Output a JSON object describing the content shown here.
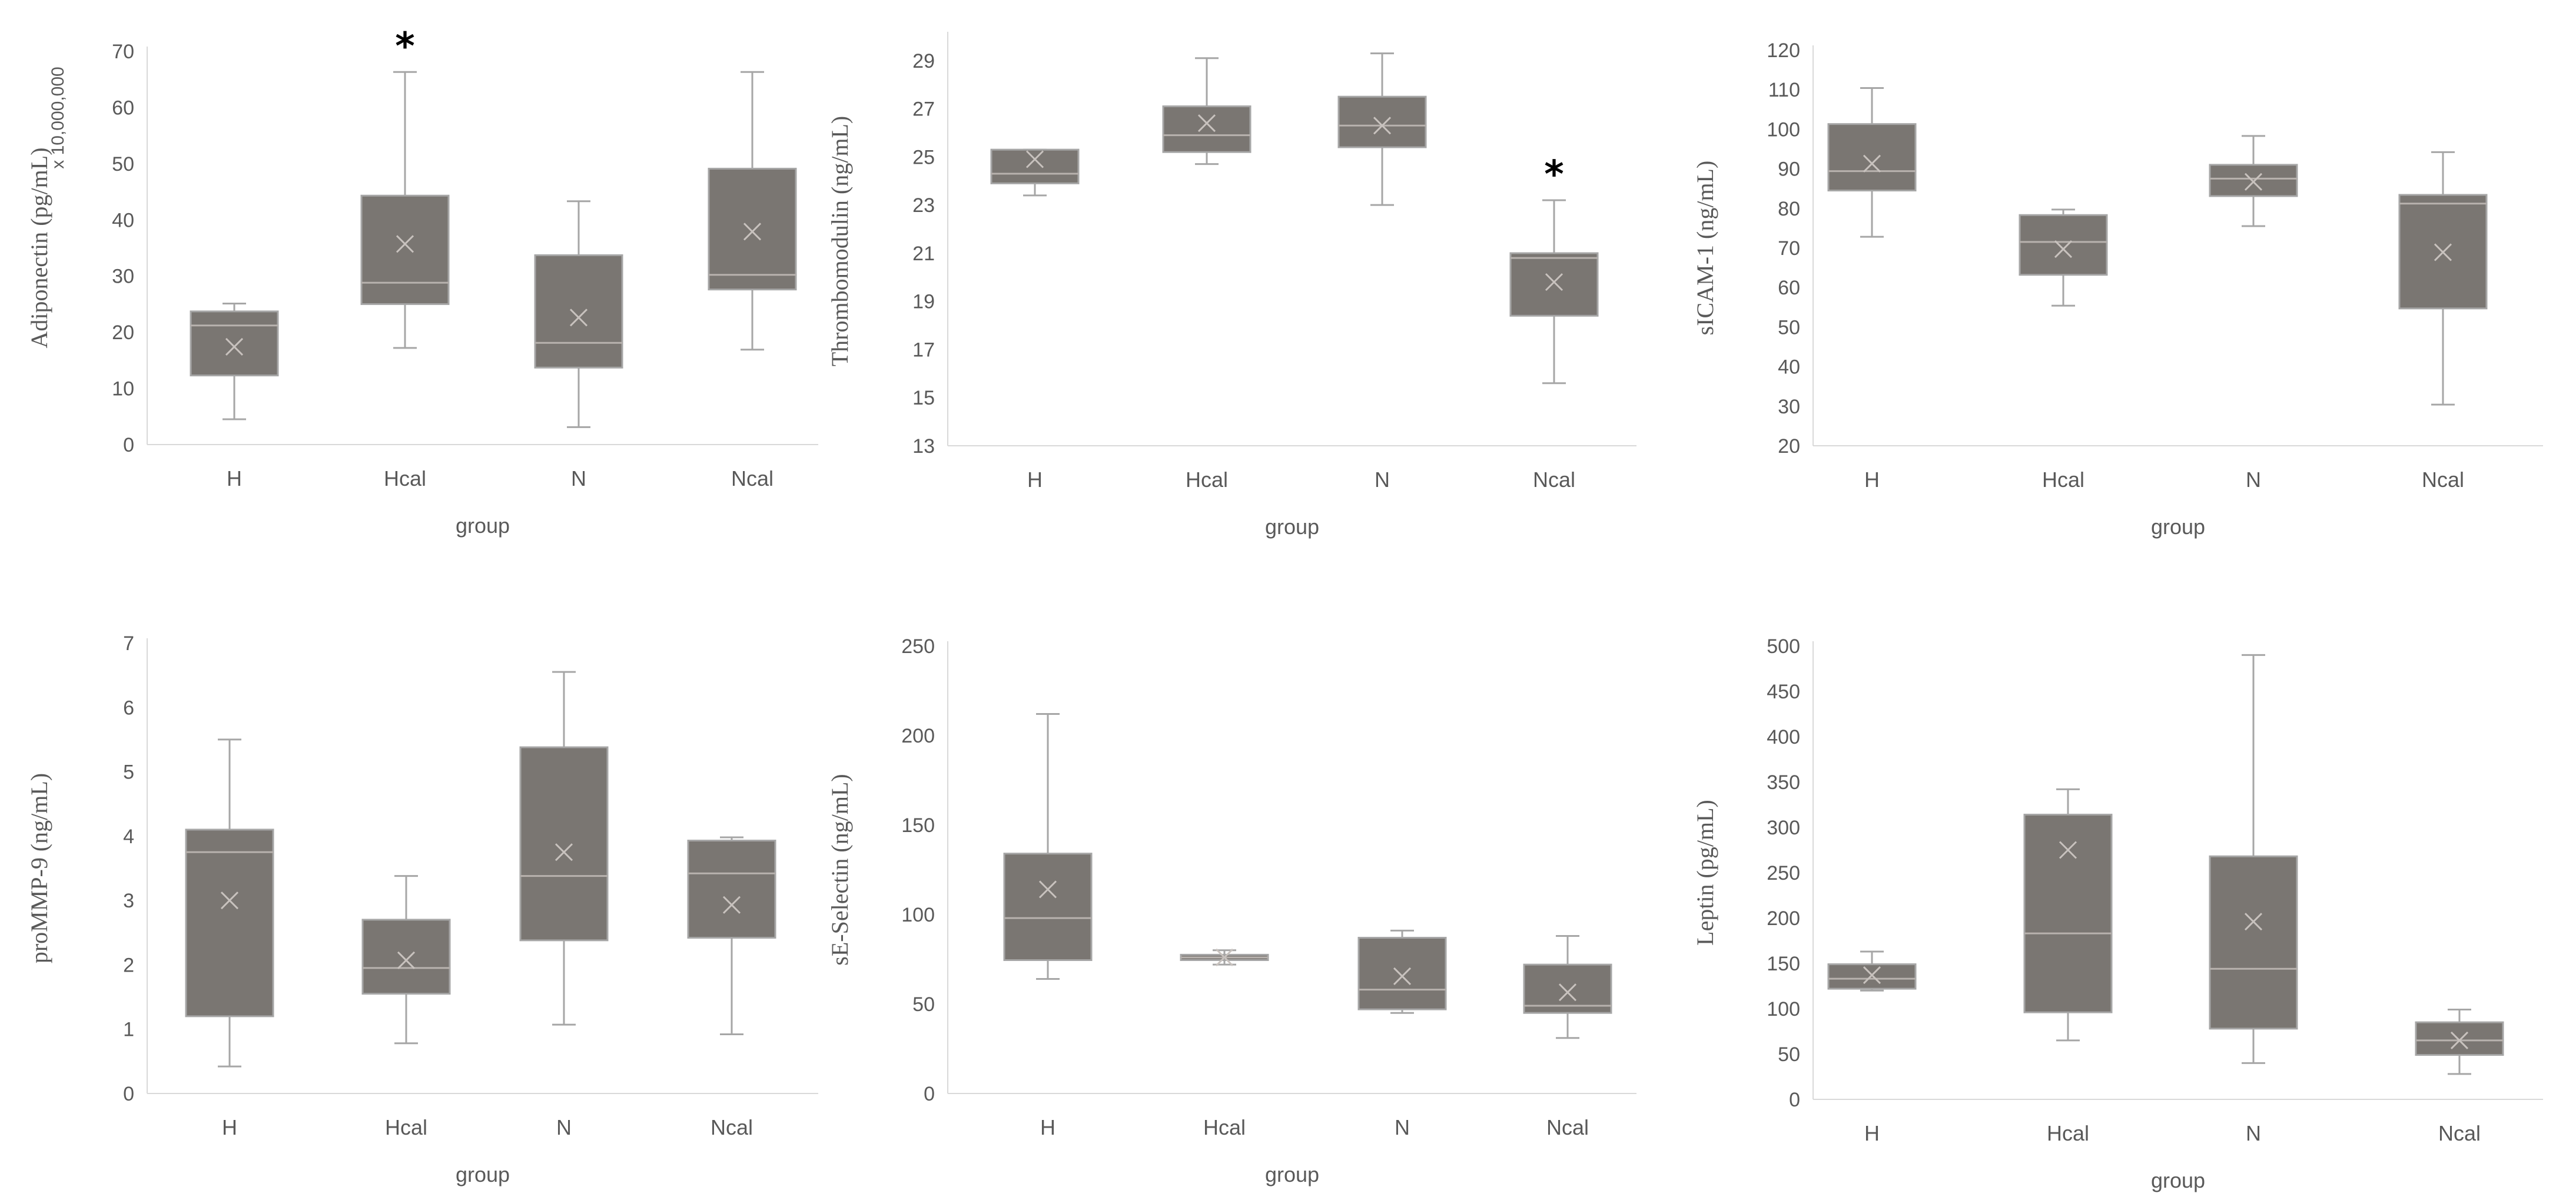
{
  "chart_data": [
    {
      "type": "box",
      "ylabel": "Adiponectin (pg/mL)",
      "multiplier_label": "x 10,000,000",
      "xlabel": "group",
      "categories": [
        "H",
        "Hcal",
        "N",
        "Ncal"
      ],
      "ylim": [
        0,
        70
      ],
      "yticks": [
        0,
        10,
        20,
        30,
        40,
        50,
        60,
        70
      ],
      "series": [
        {
          "name": "H",
          "min": 4.5,
          "q1": 12.3,
          "median": 21.2,
          "q3": 23.7,
          "max": 25.1,
          "mean": 17.4
        },
        {
          "name": "Hcal",
          "min": 17.2,
          "q1": 25.0,
          "median": 28.8,
          "q3": 44.3,
          "max": 66.3,
          "mean": 35.7
        },
        {
          "name": "N",
          "min": 3.1,
          "q1": 13.7,
          "median": 18.1,
          "q3": 33.7,
          "max": 43.3,
          "mean": 22.6
        },
        {
          "name": "Ncal",
          "min": 16.9,
          "q1": 27.6,
          "median": 30.2,
          "q3": 49.1,
          "max": 66.3,
          "mean": 37.9
        }
      ],
      "annotations": [
        {
          "category": "Hcal",
          "text": "*"
        }
      ]
    },
    {
      "type": "box",
      "ylabel": "Thrombomodulin (ng/mL)",
      "xlabel": "group",
      "categories": [
        "H",
        "Hcal",
        "N",
        "Ncal"
      ],
      "ylim": [
        13,
        30
      ],
      "yticks": [
        13,
        15,
        17,
        19,
        21,
        23,
        25,
        27,
        29
      ],
      "series": [
        {
          "name": "H",
          "min": 23.4,
          "q1": 23.9,
          "median": 24.3,
          "q3": 25.3,
          "max": 25.3,
          "mean": 24.9
        },
        {
          "name": "Hcal",
          "min": 24.7,
          "q1": 25.2,
          "median": 25.9,
          "q3": 27.1,
          "max": 29.1,
          "mean": 26.4
        },
        {
          "name": "N",
          "min": 23.0,
          "q1": 25.4,
          "median": 26.3,
          "q3": 27.5,
          "max": 29.3,
          "mean": 26.3
        },
        {
          "name": "Ncal",
          "min": 15.6,
          "q1": 18.4,
          "median": 20.8,
          "q3": 21.0,
          "max": 23.2,
          "mean": 19.8
        }
      ],
      "annotations": [
        {
          "category": "Ncal",
          "text": "*"
        }
      ]
    },
    {
      "type": "box",
      "ylabel": "sICAM-1 (ng/mL)",
      "xlabel": "group",
      "categories": [
        "H",
        "Hcal",
        "N",
        "Ncal"
      ],
      "ylim": [
        20,
        120
      ],
      "yticks": [
        20,
        30,
        40,
        50,
        60,
        70,
        80,
        90,
        100,
        110,
        120
      ],
      "series": [
        {
          "name": "H",
          "min": 72.8,
          "q1": 84.5,
          "median": 89.4,
          "q3": 101.3,
          "max": 110.4,
          "mean": 91.3
        },
        {
          "name": "Hcal",
          "min": 55.4,
          "q1": 63.2,
          "median": 71.5,
          "q3": 78.3,
          "max": 79.7,
          "mean": 69.7
        },
        {
          "name": "N",
          "min": 75.5,
          "q1": 83.1,
          "median": 87.5,
          "q3": 91.0,
          "max": 98.3,
          "mean": 86.7
        },
        {
          "name": "Ncal",
          "min": 30.4,
          "q1": 54.7,
          "median": 81.2,
          "q3": 83.4,
          "max": 94.2,
          "mean": 68.9
        }
      ],
      "annotations": []
    },
    {
      "type": "box",
      "ylabel": "proMMP-9 (ng/mL)",
      "xlabel": "group",
      "categories": [
        "H",
        "Hcal",
        "N",
        "Ncal"
      ],
      "ylim": [
        0,
        7
      ],
      "yticks": [
        0,
        1,
        2,
        3,
        4,
        5,
        6,
        7
      ],
      "series": [
        {
          "name": "H",
          "min": 0.42,
          "q1": 1.2,
          "median": 3.75,
          "q3": 4.1,
          "max": 5.5,
          "mean": 3.0
        },
        {
          "name": "Hcal",
          "min": 0.78,
          "q1": 1.55,
          "median": 1.95,
          "q3": 2.7,
          "max": 3.38,
          "mean": 2.07
        },
        {
          "name": "N",
          "min": 1.07,
          "q1": 2.38,
          "median": 3.38,
          "q3": 5.38,
          "max": 6.55,
          "mean": 3.75
        },
        {
          "name": "Ncal",
          "min": 0.92,
          "q1": 2.42,
          "median": 3.42,
          "q3": 3.93,
          "max": 3.98,
          "mean": 2.93
        }
      ],
      "annotations": []
    },
    {
      "type": "box",
      "ylabel": "sE-Selectin (ng/mL)",
      "xlabel": "group",
      "categories": [
        "H",
        "Hcal",
        "N",
        "Ncal"
      ],
      "ylim": [
        0,
        250
      ],
      "yticks": [
        0,
        50,
        100,
        150,
        200,
        250
      ],
      "series": [
        {
          "name": "H",
          "min": 64.0,
          "q1": 74.5,
          "median": 98.0,
          "q3": 134.0,
          "max": 212.0,
          "mean": 114.0
        },
        {
          "name": "Hcal",
          "min": 72.0,
          "q1": 74.5,
          "median": 76.0,
          "q3": 77.5,
          "max": 80.0,
          "mean": 76.0
        },
        {
          "name": "N",
          "min": 45.0,
          "q1": 47.0,
          "median": 58.0,
          "q3": 87.0,
          "max": 91.0,
          "mean": 65.5
        },
        {
          "name": "Ncal",
          "min": 31.0,
          "q1": 45.0,
          "median": 49.0,
          "q3": 72.0,
          "max": 88.0,
          "mean": 56.5
        }
      ],
      "annotations": []
    },
    {
      "type": "box",
      "ylabel": "Leptin (pg/mL)",
      "xlabel": "group",
      "categories": [
        "H",
        "Hcal",
        "N",
        "Ncal"
      ],
      "ylim": [
        0,
        500
      ],
      "yticks": [
        0,
        50,
        100,
        150,
        200,
        250,
        300,
        350,
        400,
        450,
        500
      ],
      "series": [
        {
          "name": "H",
          "min": 120.0,
          "q1": 122.0,
          "median": 133.0,
          "q3": 149.0,
          "max": 163.0,
          "mean": 137.0
        },
        {
          "name": "Hcal",
          "min": 65.0,
          "q1": 96.0,
          "median": 183.0,
          "q3": 314.0,
          "max": 342.0,
          "mean": 275.0
        },
        {
          "name": "N",
          "min": 40.0,
          "q1": 78.0,
          "median": 144.0,
          "q3": 268.0,
          "max": 490.0,
          "mean": 196.0
        },
        {
          "name": "Ncal",
          "min": 28.0,
          "q1": 49.0,
          "median": 65.0,
          "q3": 85.0,
          "max": 99.0,
          "mean": 65.0
        }
      ],
      "annotations": []
    }
  ],
  "colors": {
    "box_fill": "#7a7672",
    "whisker": "#a6a6a6",
    "median_line": "#b8b2ae",
    "mean_marker": "#c8c2be",
    "axis": "#d9d9d9",
    "text": "#595959",
    "annotation": "#000000"
  }
}
